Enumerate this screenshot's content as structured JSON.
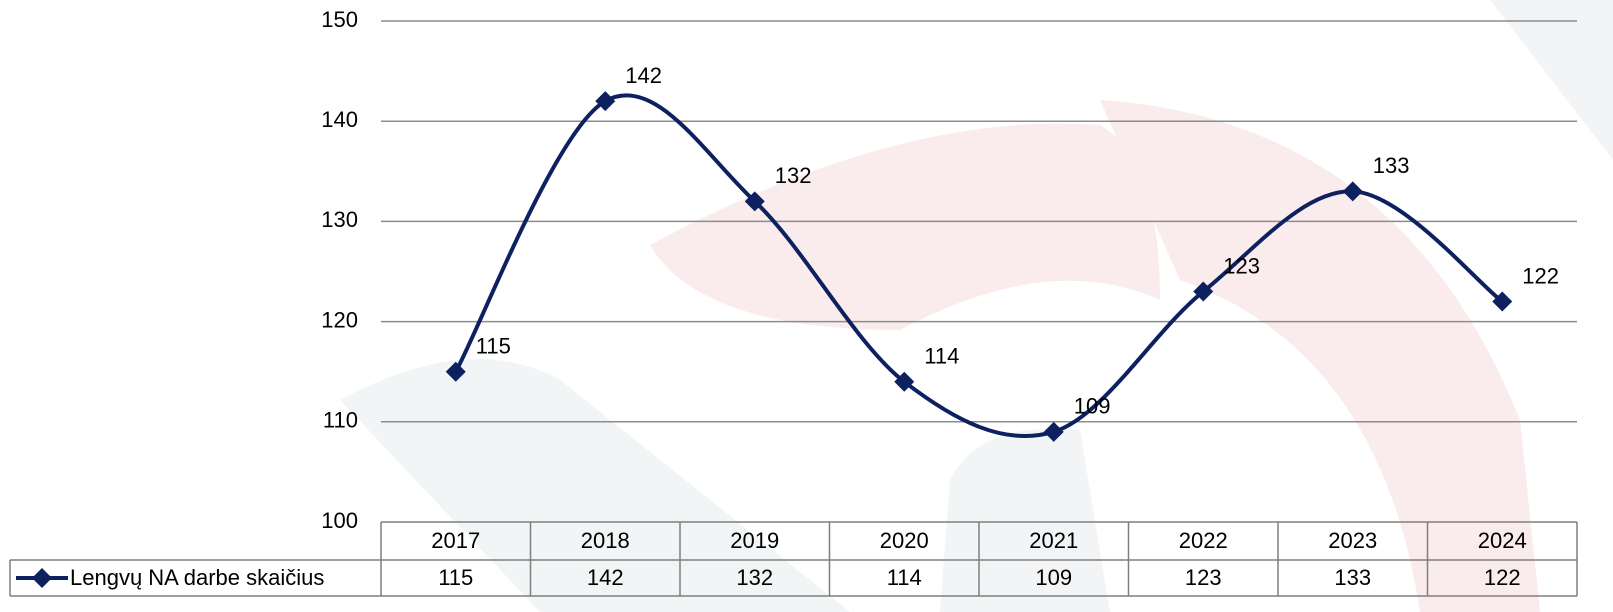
{
  "chart_data": {
    "type": "line",
    "smooth": true,
    "grid": true,
    "data_table": true,
    "categories": [
      "2017",
      "2018",
      "2019",
      "2020",
      "2021",
      "2022",
      "2023",
      "2024"
    ],
    "series": [
      {
        "name": "Lengvų NA darbe skaičius",
        "color": "#0d2160",
        "values": [
          115,
          142,
          132,
          114,
          109,
          123,
          133,
          122
        ]
      }
    ],
    "ylim": [
      100,
      150
    ],
    "yticks": [
      100,
      110,
      120,
      130,
      140,
      150
    ]
  }
}
